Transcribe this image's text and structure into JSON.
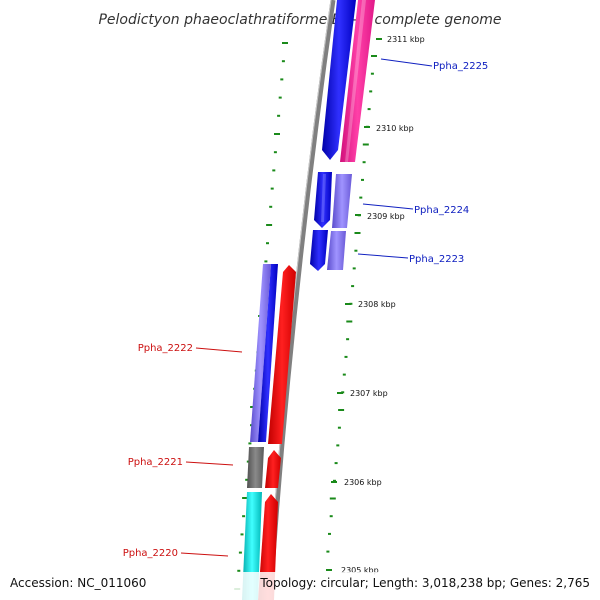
{
  "title": "Pelodictyon phaeoclathratiforme BU-1, complete genome",
  "footer": {
    "accession": "Accession: NC_011060",
    "topology": "Topology: circular; Length: 3,018,238 bp; Genes: 2,765"
  },
  "scale": {
    "tick_labels": [
      "2311 kbp",
      "2310 kbp",
      "2309 kbp",
      "2308 kbp",
      "2307 kbp",
      "2306 kbp",
      "2305 kbp"
    ]
  },
  "genes": [
    {
      "id": "Ppha_2225",
      "strand": "minus",
      "color": "#1010e8",
      "start_kbp": 2310.6,
      "end_kbp": 2311.4,
      "label_color": "#1020c0"
    },
    {
      "id": "Ppha_2224",
      "strand": "minus",
      "color": "#1010e8",
      "start_kbp": 2309.2,
      "end_kbp": 2309.8,
      "label_color": "#1020c0"
    },
    {
      "id": "Ppha_2223",
      "strand": "minus",
      "color": "#1010e8",
      "start_kbp": 2308.8,
      "end_kbp": 2309.2,
      "label_color": "#1020c0"
    },
    {
      "id": "Ppha_2222",
      "strand": "plus",
      "color": "#ff0000",
      "start_kbp": 2306.5,
      "end_kbp": 2308.3,
      "label_color": "#cc1010"
    },
    {
      "id": "Ppha_2221",
      "strand": "plus",
      "color": "#ff0000",
      "start_kbp": 2305.9,
      "end_kbp": 2306.4,
      "label_color": "#cc1010"
    },
    {
      "id": "Ppha_2220",
      "strand": "plus",
      "color": "#ff0000",
      "start_kbp": 2305.0,
      "end_kbp": 2305.9,
      "label_color": "#cc1010"
    }
  ],
  "colors": {
    "backbone": "#808080",
    "cds_minus": "#1010e8",
    "cds_plus": "#ff0000",
    "cog_pink": "#ff1493",
    "cog_purple": "#7b68ee",
    "cog_gray": "#707070",
    "cog_cyan": "#00c8c8",
    "tick_green": "#1a8a1a"
  }
}
